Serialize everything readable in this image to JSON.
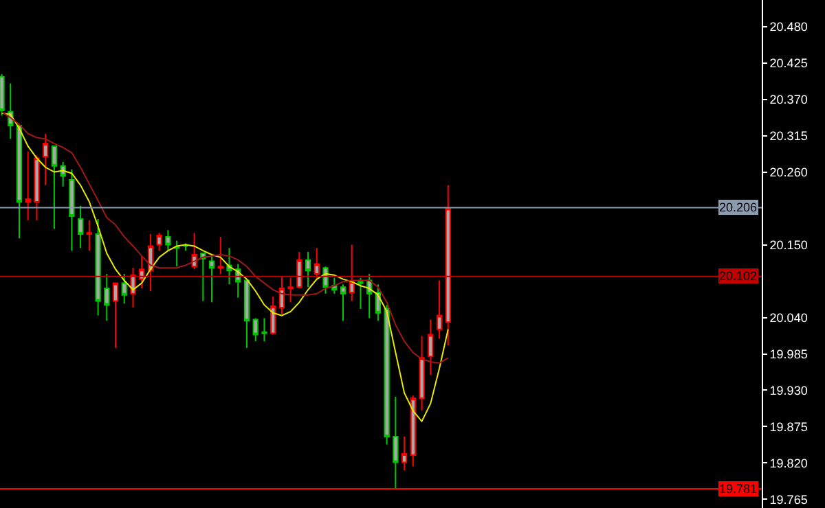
{
  "chart_data": {
    "type": "candlestick",
    "categories": [
      null,
      null,
      null,
      null,
      null,
      null,
      null,
      null,
      null,
      null,
      null,
      null,
      null,
      null,
      null,
      null,
      null,
      null,
      null,
      null,
      null,
      null,
      null,
      null,
      null,
      null,
      null,
      null,
      null,
      null,
      null,
      null,
      null,
      null,
      null,
      null,
      null,
      null,
      null,
      null,
      null,
      null,
      null,
      null,
      null,
      null,
      null,
      null,
      null,
      null,
      null,
      null
    ],
    "ohlc": [
      [
        20.404,
        20.408,
        20.345,
        20.353
      ],
      [
        20.351,
        20.394,
        20.31,
        20.33
      ],
      [
        20.33,
        20.33,
        20.16,
        20.215
      ],
      [
        20.215,
        20.291,
        20.187,
        20.219
      ],
      [
        20.215,
        20.285,
        20.187,
        20.281
      ],
      [
        20.283,
        20.318,
        20.24,
        20.303
      ],
      [
        20.299,
        20.299,
        20.174,
        20.269
      ],
      [
        20.269,
        20.275,
        20.238,
        20.254
      ],
      [
        20.248,
        20.264,
        20.141,
        20.193
      ],
      [
        20.189,
        20.209,
        20.145,
        20.166
      ],
      [
        20.166,
        20.187,
        20.141,
        20.168
      ],
      [
        20.166,
        20.189,
        20.043,
        20.065
      ],
      [
        20.084,
        20.106,
        20.035,
        20.059
      ],
      [
        20.065,
        20.092,
        19.994,
        20.092
      ],
      [
        20.092,
        20.106,
        20.061,
        20.074
      ],
      [
        20.076,
        20.115,
        20.055,
        20.104
      ],
      [
        20.098,
        20.133,
        20.084,
        20.113
      ],
      [
        20.111,
        20.166,
        20.08,
        20.148
      ],
      [
        20.15,
        20.168,
        20.141,
        20.164
      ],
      [
        20.162,
        20.172,
        20.141,
        20.15
      ],
      [
        20.146,
        20.156,
        20.117,
        20.145
      ],
      [
        20.148,
        20.152,
        20.141,
        20.148
      ],
      [
        20.117,
        20.168,
        20.113,
        20.135
      ],
      [
        20.137,
        20.137,
        20.065,
        20.129
      ],
      [
        20.125,
        20.135,
        20.063,
        20.115
      ],
      [
        20.115,
        20.162,
        20.106,
        20.117
      ],
      [
        20.119,
        20.145,
        20.09,
        20.111
      ],
      [
        20.113,
        20.121,
        20.07,
        20.094
      ],
      [
        20.096,
        20.096,
        19.994,
        20.035
      ],
      [
        20.037,
        20.039,
        20.004,
        20.014
      ],
      [
        20.018,
        20.039,
        20.004,
        20.016
      ],
      [
        20.016,
        20.072,
        20.014,
        20.057
      ],
      [
        20.055,
        20.102,
        20.045,
        20.084
      ],
      [
        20.084,
        20.1,
        20.063,
        20.086
      ],
      [
        20.086,
        20.139,
        20.084,
        20.127
      ],
      [
        20.127,
        20.139,
        20.086,
        20.111
      ],
      [
        20.106,
        20.145,
        20.1,
        20.121
      ],
      [
        20.115,
        20.117,
        20.076,
        20.086
      ],
      [
        20.088,
        20.1,
        20.076,
        20.082
      ],
      [
        20.086,
        20.09,
        20.035,
        20.076
      ],
      [
        20.078,
        20.15,
        20.065,
        20.094
      ],
      [
        20.094,
        20.1,
        20.053,
        20.092
      ],
      [
        20.096,
        20.106,
        20.039,
        20.076
      ],
      [
        20.078,
        20.09,
        20.035,
        20.047
      ],
      [
        20.053,
        20.059,
        19.848,
        19.86
      ],
      [
        19.86,
        19.92,
        19.78,
        19.821
      ],
      [
        19.821,
        19.86,
        19.809,
        19.834
      ],
      [
        19.832,
        19.922,
        19.815,
        19.918
      ],
      [
        19.918,
        20.012,
        19.899,
        19.979
      ],
      [
        19.981,
        20.037,
        19.953,
        20.014
      ],
      [
        20.022,
        20.096,
        20.008,
        20.043
      ],
      [
        20.033,
        20.24,
        19.998,
        20.205
      ]
    ],
    "colors": [
      "#00c800",
      "#00c800",
      "#00c800",
      "#ff0000",
      "#ff0000",
      "#ff0000",
      "#00c800",
      "#00c800",
      "#00c800",
      "#00c800",
      "#ff0000",
      "#00c800",
      "#00c800",
      "#ff0000",
      "#00c800",
      "#ff0000",
      "#ff0000",
      "#ff0000",
      "#ff0000",
      "#00c800",
      "#00c800",
      "#00c800",
      "#ff0000",
      "#00c800",
      "#00c800",
      "#ff0000",
      "#00c800",
      "#00c800",
      "#00c800",
      "#00c800",
      "#00c800",
      "#ff0000",
      "#ff0000",
      "#ff0000",
      "#ff0000",
      "#00c800",
      "#ff0000",
      "#00c800",
      "#00c800",
      "#00c800",
      "#ff0000",
      "#00c800",
      "#00c800",
      "#00c800",
      "#00c800",
      "#00c800",
      "#ff0000",
      "#ff0000",
      "#ff0000",
      "#ff0000",
      "#ff0000",
      "#ff0000"
    ],
    "series": [
      {
        "type": "line",
        "color": "#e8e800",
        "values": [
          20.349,
          20.347,
          20.326,
          20.299,
          20.281,
          20.267,
          20.26,
          20.262,
          20.258,
          20.24,
          20.215,
          20.178,
          20.137,
          20.113,
          20.096,
          20.082,
          20.092,
          20.113,
          20.131,
          20.141,
          20.148,
          20.15,
          20.148,
          20.141,
          20.135,
          20.131,
          20.117,
          20.109,
          20.098,
          20.08,
          20.059,
          20.047,
          20.043,
          20.049,
          20.063,
          20.082,
          20.098,
          20.106,
          20.104,
          20.098,
          20.094,
          20.088,
          20.084,
          20.074,
          20.049,
          19.987,
          19.926,
          19.899,
          19.883,
          19.91,
          19.963,
          20.022
        ]
      },
      {
        "type": "line",
        "color": "#a01818",
        "values": [
          20.351,
          20.342,
          20.332,
          20.318,
          20.312,
          20.31,
          20.303,
          20.297,
          20.289,
          20.267,
          20.242,
          20.217,
          20.191,
          20.18,
          20.162,
          20.148,
          20.133,
          20.119,
          20.115,
          20.115,
          20.115,
          20.119,
          20.125,
          20.131,
          20.133,
          20.135,
          20.133,
          20.127,
          20.117,
          20.102,
          20.092,
          20.082,
          20.076,
          20.074,
          20.074,
          20.074,
          20.076,
          20.084,
          20.088,
          20.094,
          20.096,
          20.096,
          20.096,
          20.086,
          20.063,
          20.029,
          20.004,
          19.987,
          19.977,
          19.973,
          19.971,
          19.979
        ]
      }
    ],
    "ylim": [
      19.752,
      20.52
    ],
    "yticks": [
      {
        "value": 20.48,
        "label": "20.480"
      },
      20.425,
      {
        "value": 20.37,
        "label": "20.370"
      },
      20.315,
      {
        "value": 20.26,
        "label": "20.260"
      },
      {
        "value": 20.15,
        "label": "20.150"
      },
      {
        "value": 20.04,
        "label": "20.040"
      },
      19.985,
      {
        "value": 19.93,
        "label": "19.930"
      },
      19.875,
      {
        "value": 19.82,
        "label": "19.820"
      },
      19.765
    ],
    "ref_lines": [
      {
        "axis": "y",
        "value": 20.206,
        "label": "20.206",
        "color": "#8c9cb0"
      },
      {
        "axis": "y",
        "value": 20.102,
        "label": "20.102",
        "color": "#c00000"
      },
      {
        "axis": "y",
        "value": 19.781,
        "label": "19.781",
        "color": "#ff0000"
      }
    ],
    "grid": false,
    "tick_labels": "y"
  }
}
